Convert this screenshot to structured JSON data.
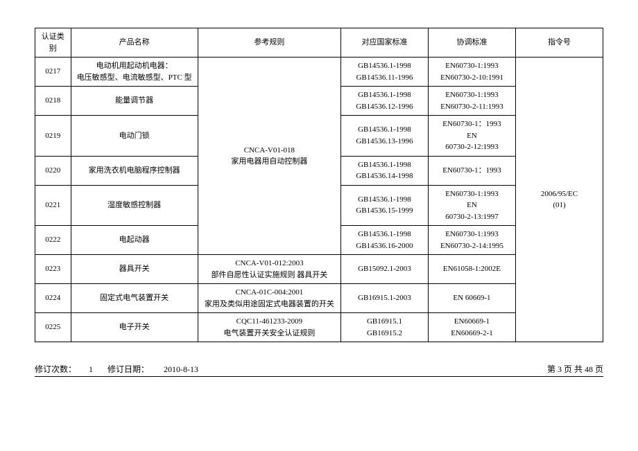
{
  "headers": {
    "code": "认证类别",
    "name": "产品名称",
    "rule": "参考规则",
    "std": "对应国家标准",
    "harm": "协调标准",
    "dir": "指令号"
  },
  "merged": {
    "rule_018_line1": "CNCA-V01-018",
    "rule_018_line2": "家用电器用自动控制器",
    "directive_line1": "2006/95/EC",
    "directive_line2": "(01)"
  },
  "rows": [
    {
      "code": "0217",
      "name_l1": "电动机用起动机电器：",
      "name_l2": "电压敏感型、电流敏感型、PTC 型",
      "std_l1": "GB14536.1-1998",
      "std_l2": "GB14536.11-1996",
      "harm_l1": "EN60730-1:1993",
      "harm_l2": "EN60730-2-10:1991"
    },
    {
      "code": "0218",
      "name_l1": "能量调节器",
      "name_l2": "",
      "std_l1": "GB14536.1-1998",
      "std_l2": "GB14536.12-1996",
      "harm_l1": "EN60730-1:1993",
      "harm_l2": "EN60730-2-11:1993"
    },
    {
      "code": "0219",
      "name_l1": "电动门锁",
      "name_l2": "",
      "std_l1": "GB14536.1-1998",
      "std_l2": "GB14536.13-1996",
      "harm_l1": "EN60730-1：1993",
      "harm_l2": "EN",
      "harm_l3": "60730-2-12:1993"
    },
    {
      "code": "0220",
      "name_l1": "家用洗衣机电脑程序控制器",
      "name_l2": "",
      "std_l1": "GB14536.1-1998",
      "std_l2": "GB14536.14-1998",
      "harm_l1": "EN60730-1：1993",
      "harm_l2": ""
    },
    {
      "code": "0221",
      "name_l1": "湿度敏感控制器",
      "name_l2": "",
      "std_l1": "GB14536.1-1998",
      "std_l2": "GB14536.15-1999",
      "harm_l1": "EN60730-1:1993",
      "harm_l2": "EN",
      "harm_l3": "60730-2-13:1997"
    },
    {
      "code": "0222",
      "name_l1": "电起动器",
      "name_l2": "",
      "std_l1": "GB14536.1-1998",
      "std_l2": "GB14536.16-2000",
      "harm_l1": "EN60730-1:1993",
      "harm_l2": "EN60730-2-14:1995"
    },
    {
      "code": "0223",
      "name_l1": "器具开关",
      "name_l2": "",
      "rule_l1": "CNCA-V01-012:2003",
      "rule_l2": "部件自愿性认证实施规则  器具开关",
      "std_l1": "GB15092.1-2003",
      "std_l2": "",
      "harm_l1": "EN61058-1:2002E",
      "harm_l2": ""
    },
    {
      "code": "0224",
      "name_l1": "固定式电气装置开关",
      "name_l2": "",
      "rule_l1": "CNCA-01C-004:2001",
      "rule_l2": "家用及类似用途固定式电器装置的开关",
      "std_l1": "GB16915.1-2003",
      "std_l2": "",
      "harm_l1": "EN 60669-1",
      "harm_l2": ""
    },
    {
      "code": "0225",
      "name_l1": "电子开关",
      "name_l2": "",
      "rule_l1": "CQC11-461233-2009",
      "rule_l2": "电气装置开关安全认证规则",
      "std_l1": "GB16915.1",
      "std_l2": "GB16915.2",
      "harm_l1": "EN60669-1",
      "harm_l2": "EN60669-2-1"
    }
  ],
  "footer": {
    "rev_count_label": "修订次数：",
    "rev_count": "1",
    "rev_date_label": "修订日期：",
    "rev_date": "2010-8-13",
    "page": "第 3 页 共 48 页"
  }
}
